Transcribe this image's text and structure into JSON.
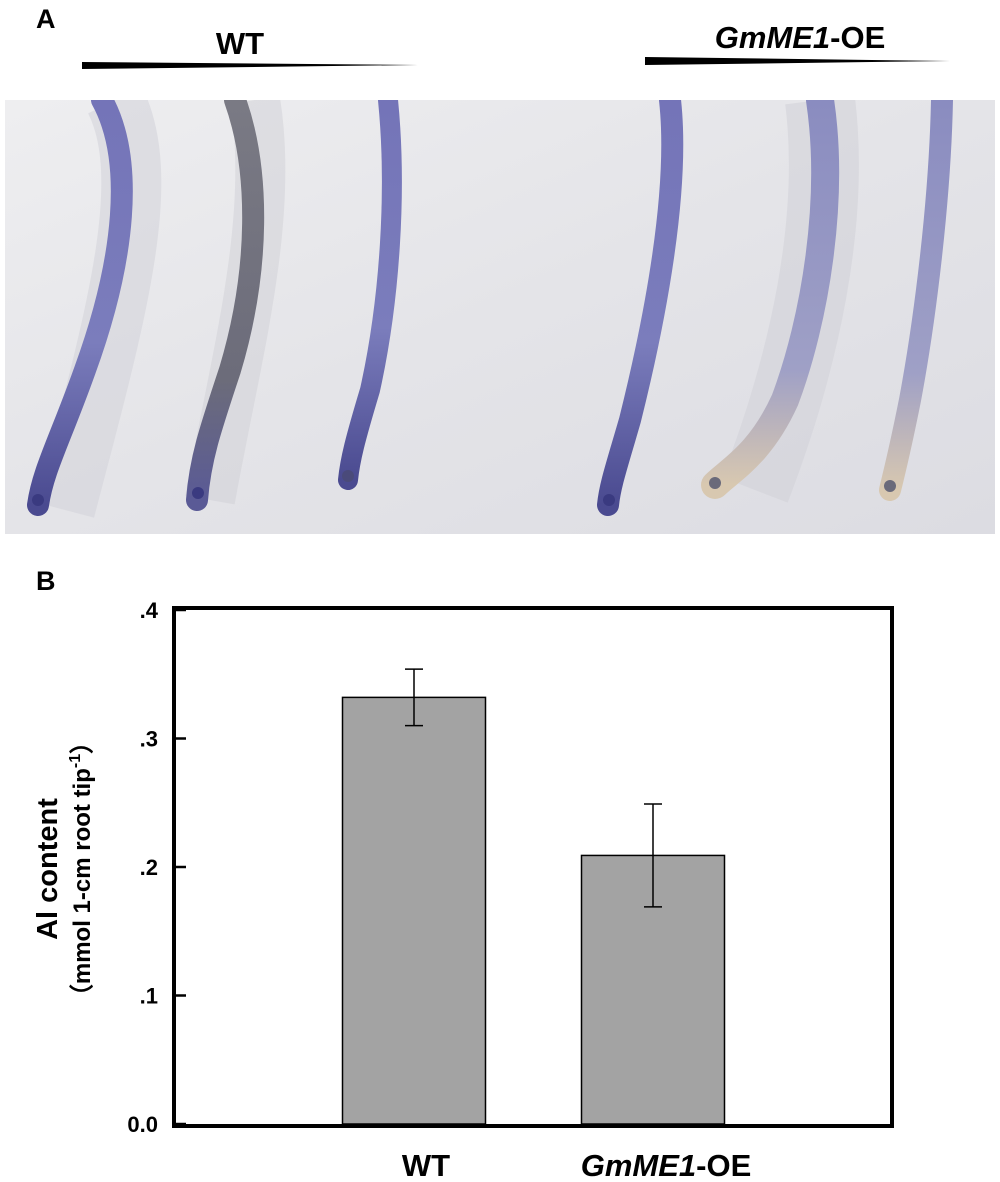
{
  "panels": {
    "a_letter": "A",
    "b_letter": "B"
  },
  "photo": {
    "group_left": "WT",
    "group_right_gene": "GmME1",
    "group_right_suffix": "-OE",
    "roots_per_group": 3
  },
  "colors": {
    "bar_fill": "#a3a3a3",
    "axis": "#000000",
    "stain": "#6a6ab4",
    "background_photo": "#e6e6ea"
  },
  "chart_data": {
    "type": "bar",
    "categories": [
      "WT",
      "GmME1-OE"
    ],
    "category_parts": [
      {
        "italic": "",
        "plain": "WT"
      },
      {
        "italic": "GmME1",
        "plain": "-OE"
      }
    ],
    "values": [
      0.332,
      0.209
    ],
    "error": [
      0.022,
      0.04
    ],
    "ylim": [
      0,
      0.4
    ],
    "yticks": [
      0.0,
      0.1,
      0.2,
      0.3,
      0.4
    ],
    "ytick_labels": [
      "0.0",
      ".1",
      ".2",
      ".3",
      ".4"
    ],
    "ylabel": "Al content",
    "ylabel_units_prefix": "（mmol 1-cm root tip",
    "ylabel_units_sup": "-1",
    "ylabel_units_suffix": "）",
    "grid": false
  }
}
